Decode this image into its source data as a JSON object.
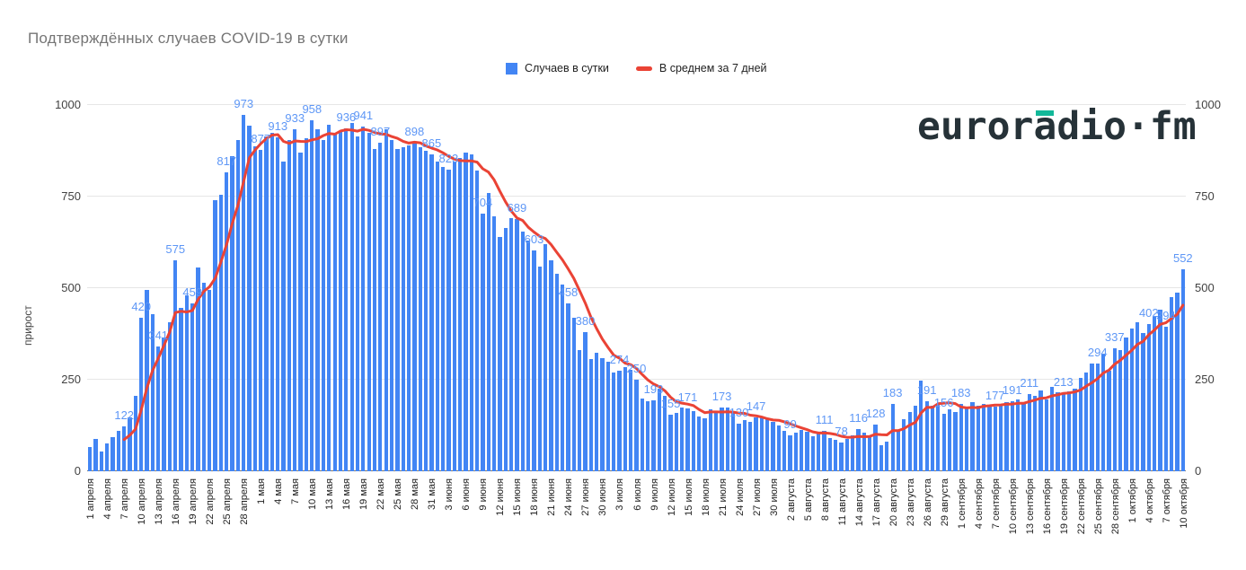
{
  "title": "Подтверждённых случаев COVID-19 в сутки",
  "logo": {
    "part1": "euror",
    "part2": "a",
    "part3": "dio·fm",
    "color": "#263238",
    "accent_color": "#12b899"
  },
  "legend": {
    "items": [
      {
        "label": "Случаев в сутки",
        "color": "#4285f4",
        "type": "square"
      },
      {
        "label": "В среднем за 7 дней",
        "color": "#ea4335",
        "type": "line"
      }
    ]
  },
  "y_axis": {
    "title": "прирост",
    "ticks": [
      0,
      250,
      500,
      750,
      1000
    ],
    "max": 1000,
    "sides": [
      "left",
      "right"
    ]
  },
  "colors": {
    "bar": "#4285f4",
    "line": "#ea4335",
    "annotation": "#5e97f6",
    "title": "#757575",
    "grid": "#e6e6e6",
    "axis": "#757575",
    "tick_text": "#222222"
  },
  "chart_data": {
    "type": "bar",
    "title": "Подтверждённых случаев COVID-19 в сутки",
    "xlabel": "",
    "ylabel": "прирост",
    "ylim": [
      0,
      1000
    ],
    "grid": true,
    "legend_position": "top",
    "x_range": [
      "1 апреля",
      "10 октября"
    ],
    "n_points": 193,
    "x_tick_every": 3,
    "x_tick_labels": [
      "1 апреля",
      "4 апреля",
      "7 апреля",
      "10 апреля",
      "13 апреля",
      "16 апреля",
      "19 апреля",
      "22 апреля",
      "25 апреля",
      "28 апреля",
      "1 мая",
      "4 мая",
      "7 мая",
      "10 мая",
      "13 мая",
      "16 мая",
      "19 мая",
      "22 мая",
      "25 мая",
      "28 мая",
      "31 мая",
      "3 июня",
      "6 июня",
      "9 июня",
      "12 июня",
      "15 июня",
      "18 июня",
      "21 июня",
      "24 июня",
      "27 июня",
      "30 июня",
      "3 июля",
      "6 июля",
      "9 июля",
      "12 июля",
      "15 июля",
      "18 июля",
      "21 июля",
      "24 июля",
      "27 июля",
      "30 июля",
      "2 августа",
      "5 августа",
      "8 августа",
      "11 августа",
      "14 августа",
      "17 августа",
      "20 августа",
      "23 августа",
      "26 августа",
      "29 августа",
      "1 сентября",
      "4 сентября",
      "7 сентября",
      "10 сентября",
      "13 сентября",
      "16 сентября",
      "19 сентября",
      "22 сентября",
      "25 сентября",
      "28 сентября",
      "1 октября",
      "4 октября",
      "7 октября",
      "10 октября"
    ],
    "series": [
      {
        "name": "Случаев в сутки",
        "type": "bar",
        "color": "#4285f4",
        "values": [
          65,
          88,
          54,
          75,
          92,
          110,
          122,
          148,
          205,
          420,
          494,
          430,
          341,
          365,
          408,
          575,
          445,
          480,
          459,
          556,
          515,
          495,
          740,
          755,
          817,
          860,
          905,
          973,
          943,
          887,
          877,
          915,
          925,
          913,
          845,
          905,
          933,
          870,
          910,
          958,
          935,
          905,
          945,
          920,
          930,
          936,
          950,
          915,
          941,
          925,
          880,
          897,
          935,
          905,
          880,
          885,
          890,
          898,
          885,
          875,
          865,
          845,
          830,
          823,
          845,
          855,
          870,
          865,
          820,
          704,
          760,
          695,
          640,
          665,
          690,
          689,
          655,
          630,
          603,
          560,
          620,
          577,
          540,
          510,
          458,
          420,
          330,
          380,
          307,
          323,
          310,
          298,
          270,
          274,
          285,
          277,
          250,
          198,
          190,
          193,
          225,
          205,
          155,
          160,
          175,
          171,
          165,
          150,
          145,
          168,
          160,
          173,
          175,
          160,
          130,
          140,
          135,
          147,
          150,
          142,
          135,
          125,
          110,
          99,
          105,
          112,
          108,
          95,
          102,
          111,
          90,
          85,
          78,
          88,
          98,
          116,
          105,
          95,
          128,
          70,
          82,
          183,
          114,
          143,
          163,
          180,
          248,
          191,
          180,
          185,
          156,
          170,
          163,
          183,
          175,
          188,
          180,
          185,
          178,
          177,
          185,
          188,
          191,
          195,
          185,
          211,
          205,
          220,
          196,
          230,
          215,
          213,
          218,
          225,
          255,
          270,
          295,
          294,
          320,
          275,
          337,
          330,
          365,
          390,
          408,
          378,
          402,
          425,
          440,
          394,
          475,
          487,
          552
        ]
      },
      {
        "name": "В среднем за 7 дней",
        "type": "line",
        "color": "#ea4335",
        "derived_from": "7-day trailing average of bar series"
      }
    ],
    "annotations": [
      {
        "i": 6,
        "v": 122
      },
      {
        "i": 9,
        "v": 420
      },
      {
        "i": 12,
        "v": 341
      },
      {
        "i": 15,
        "v": 575
      },
      {
        "i": 18,
        "v": 459
      },
      {
        "i": 24,
        "v": 817
      },
      {
        "i": 27,
        "v": 973
      },
      {
        "i": 30,
        "v": 877
      },
      {
        "i": 33,
        "v": 913
      },
      {
        "i": 36,
        "v": 933
      },
      {
        "i": 39,
        "v": 958
      },
      {
        "i": 45,
        "v": 936
      },
      {
        "i": 48,
        "v": 941
      },
      {
        "i": 51,
        "v": 897
      },
      {
        "i": 57,
        "v": 898
      },
      {
        "i": 60,
        "v": 865
      },
      {
        "i": 63,
        "v": 823
      },
      {
        "i": 69,
        "v": 704
      },
      {
        "i": 75,
        "v": 689
      },
      {
        "i": 78,
        "v": 603
      },
      {
        "i": 84,
        "v": 458
      },
      {
        "i": 87,
        "v": 380
      },
      {
        "i": 93,
        "v": 274
      },
      {
        "i": 96,
        "v": 250
      },
      {
        "i": 99,
        "v": 193
      },
      {
        "i": 102,
        "v": 155
      },
      {
        "i": 105,
        "v": 171
      },
      {
        "i": 111,
        "v": 173
      },
      {
        "i": 114,
        "v": 130
      },
      {
        "i": 117,
        "v": 147
      },
      {
        "i": 123,
        "v": 99
      },
      {
        "i": 129,
        "v": 111
      },
      {
        "i": 132,
        "v": 78
      },
      {
        "i": 135,
        "v": 116
      },
      {
        "i": 138,
        "v": 128
      },
      {
        "i": 141,
        "v": 183
      },
      {
        "i": 147,
        "v": 191
      },
      {
        "i": 150,
        "v": 156
      },
      {
        "i": 153,
        "v": 183
      },
      {
        "i": 159,
        "v": 177
      },
      {
        "i": 162,
        "v": 191
      },
      {
        "i": 165,
        "v": 211
      },
      {
        "i": 171,
        "v": 213
      },
      {
        "i": 177,
        "v": 294
      },
      {
        "i": 180,
        "v": 337
      },
      {
        "i": 186,
        "v": 402
      },
      {
        "i": 189,
        "v": 394
      },
      {
        "i": 192,
        "v": 552
      }
    ]
  }
}
